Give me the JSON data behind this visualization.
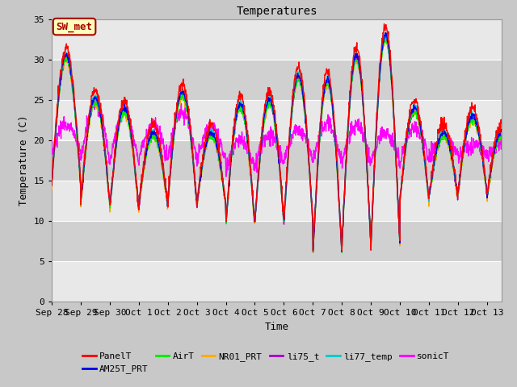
{
  "title": "Temperatures",
  "xlabel": "Time",
  "ylabel": "Temperature (C)",
  "ylim": [
    0,
    35
  ],
  "annotation_text": "SW_met",
  "annotation_bg": "#FFFFBB",
  "annotation_border": "#AA0000",
  "annotation_text_color": "#AA0000",
  "series_colors": {
    "PanelT": "#FF0000",
    "AM25T_PRT": "#0000EE",
    "AirT": "#00EE00",
    "NR01_PRT": "#FFAA00",
    "li75_t": "#AA00CC",
    "li77_temp": "#00CCCC",
    "sonicT": "#FF00FF"
  },
  "tick_labels": [
    "Sep 28",
    "Sep 29",
    "Sep 30",
    "Oct 1",
    "Oct 2",
    "Oct 3",
    "Oct 4",
    "Oct 5",
    "Oct 6",
    "Oct 7",
    "Oct 8",
    "Oct 9",
    "Oct 10",
    "Oct 11",
    "Oct 12",
    "Oct 13"
  ],
  "yticks": [
    0,
    5,
    10,
    15,
    20,
    25,
    30,
    35
  ],
  "fig_bg": "#C8C8C8",
  "ax_bg": "#E0E0E0",
  "band_colors": [
    "#D8D8D8",
    "#C8C8C8"
  ],
  "grid_color": "#FFFFFF"
}
